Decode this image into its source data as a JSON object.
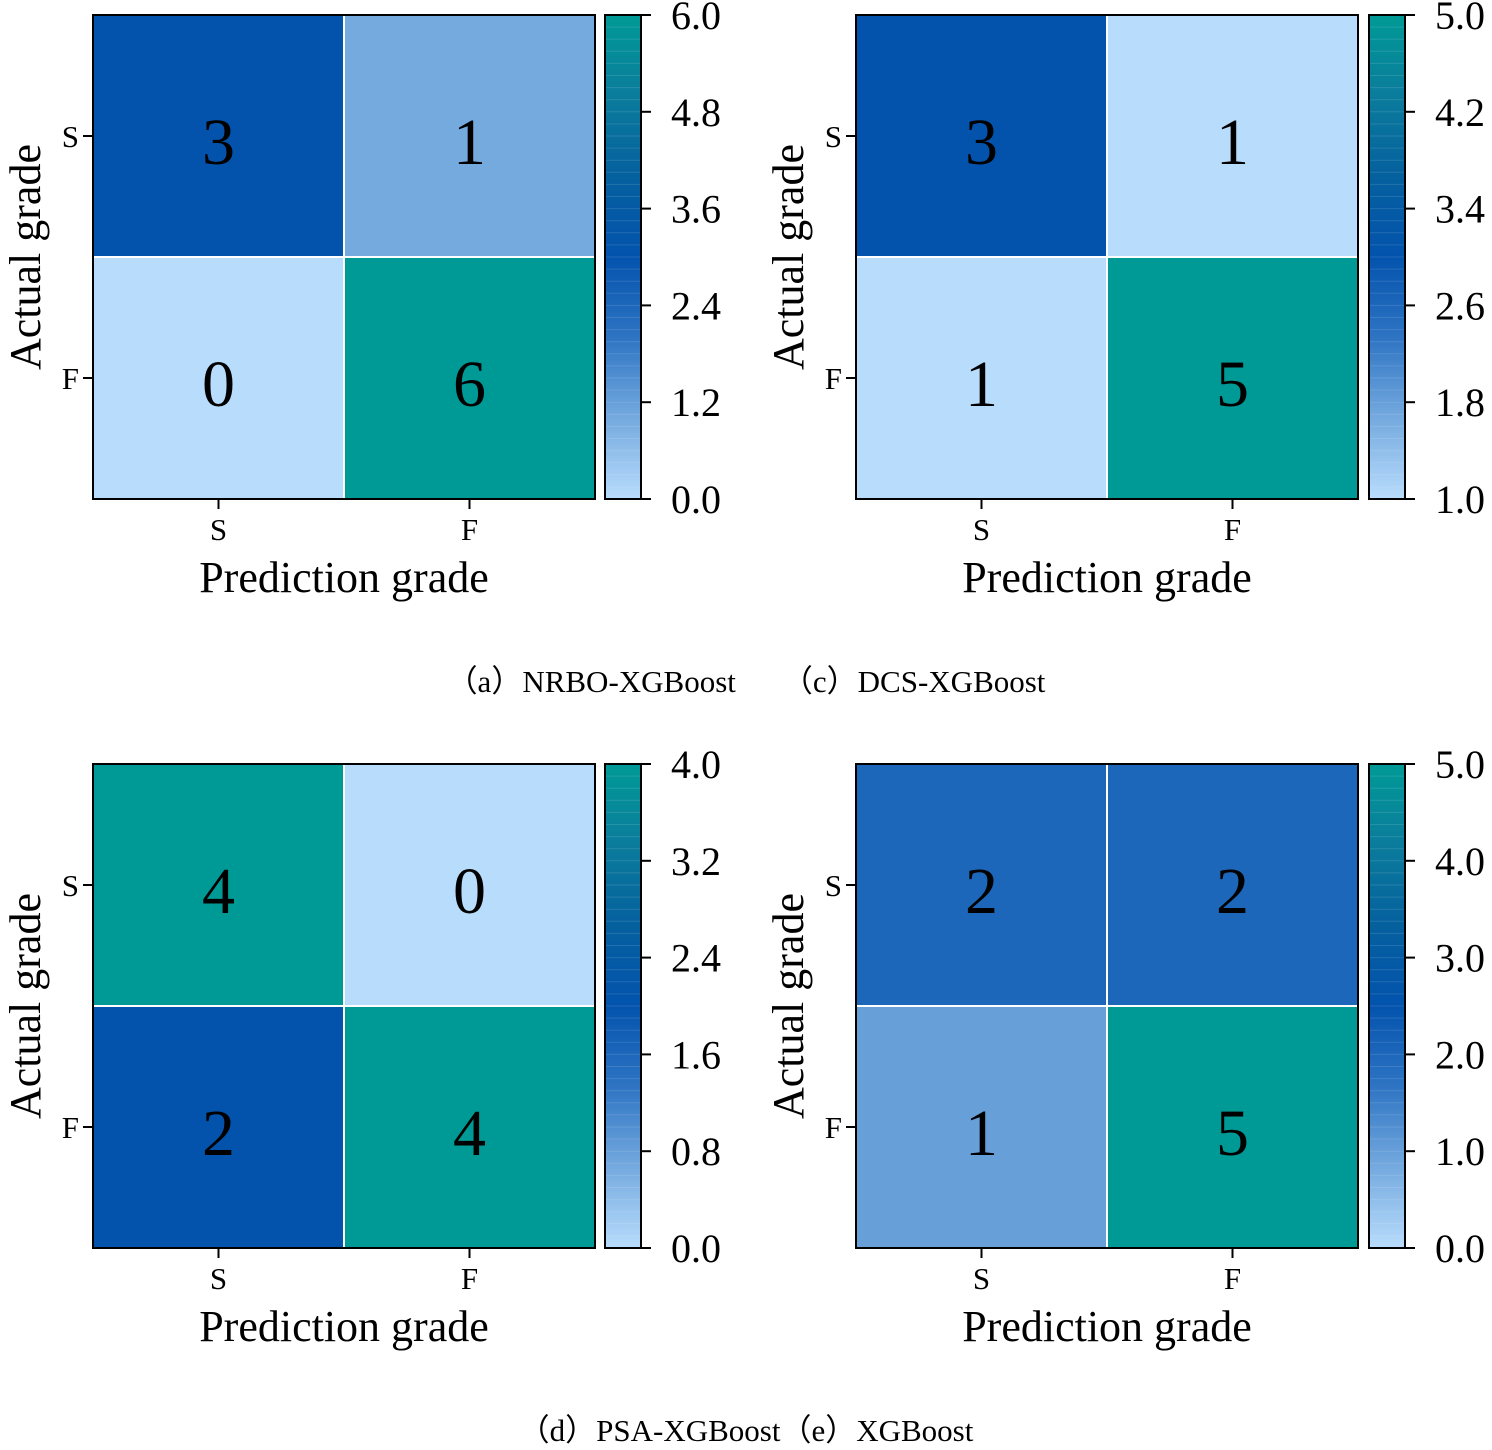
{
  "chart_data": [
    {
      "type": "heatmap",
      "panel_caption": "（a）NRBO-XGBoost",
      "xlabel": "Prediction grade",
      "ylabel": "Actual grade",
      "x_categories": [
        "S",
        "F"
      ],
      "y_categories": [
        "S",
        "F"
      ],
      "values": [
        [
          3,
          1
        ],
        [
          0,
          6
        ]
      ],
      "colorbar": {
        "range": [
          0.0,
          6.0
        ],
        "ticks": [
          "0.0",
          "1.2",
          "2.4",
          "3.6",
          "4.8",
          "6.0"
        ]
      }
    },
    {
      "type": "heatmap",
      "panel_caption": "（c）DCS-XGBoost",
      "xlabel": "Prediction grade",
      "ylabel": "Actual grade",
      "x_categories": [
        "S",
        "F"
      ],
      "y_categories": [
        "S",
        "F"
      ],
      "values": [
        [
          3,
          1
        ],
        [
          1,
          5
        ]
      ],
      "colorbar": {
        "range": [
          1.0,
          5.0
        ],
        "ticks": [
          "1.0",
          "1.8",
          "2.6",
          "3.4",
          "4.2",
          "5.0"
        ]
      }
    },
    {
      "type": "heatmap",
      "panel_caption": "（d）PSA-XGBoost",
      "xlabel": "Prediction grade",
      "ylabel": "Actual grade",
      "x_categories": [
        "S",
        "F"
      ],
      "y_categories": [
        "S",
        "F"
      ],
      "values": [
        [
          4,
          0
        ],
        [
          2,
          4
        ]
      ],
      "colorbar": {
        "range": [
          0.0,
          4.0
        ],
        "ticks": [
          "0.0",
          "0.8",
          "1.6",
          "2.4",
          "3.2",
          "4.0"
        ]
      }
    },
    {
      "type": "heatmap",
      "panel_caption": "（e）XGBoost",
      "xlabel": "Prediction grade",
      "ylabel": "Actual grade",
      "x_categories": [
        "S",
        "F"
      ],
      "y_categories": [
        "S",
        "F"
      ],
      "values": [
        [
          2,
          2
        ],
        [
          1,
          5
        ]
      ],
      "colorbar": {
        "range": [
          0.0,
          5.0
        ],
        "ticks": [
          "0.0",
          "1.0",
          "2.0",
          "3.0",
          "4.0",
          "5.0"
        ]
      }
    }
  ],
  "colormap": [
    "#b8dcfc",
    "#75aadf",
    "#2e74c3",
    "#0353ad",
    "#05609e",
    "#0b7c9c",
    "#009a96"
  ],
  "captions": {
    "top_left": "（a）NRBO-XGBoost",
    "top_right": "（c）DCS-XGBoost",
    "bottom_left": "（d）PSA-XGBoost",
    "bottom_right": "（e）XGBoost"
  }
}
